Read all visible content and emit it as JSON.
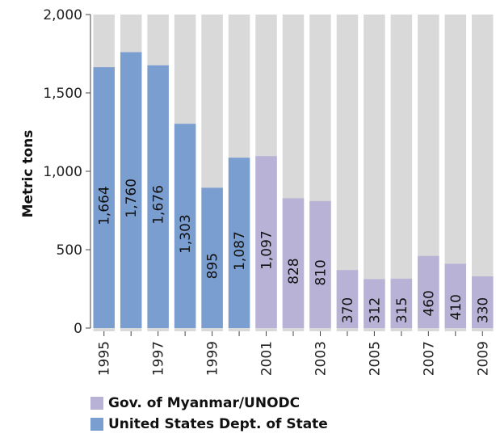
{
  "chart_data": {
    "type": "bar",
    "ylabel": "Metric tons",
    "ylim": [
      0,
      2000
    ],
    "yticks": [
      0,
      500,
      1000,
      1500,
      2000
    ],
    "ytick_labels": [
      "0",
      "500",
      "1,000",
      "1,500",
      "2,000"
    ],
    "categories": [
      "1995",
      "1996",
      "1997",
      "1998",
      "1999",
      "2000",
      "2001",
      "2002",
      "2003",
      "2004",
      "2005",
      "2006",
      "2007",
      "2008",
      "2009"
    ],
    "xtick_labels": [
      "1995",
      "",
      "1997",
      "",
      "1999",
      "",
      "2001",
      "",
      "2003",
      "",
      "2005",
      "",
      "2007",
      "",
      "2009"
    ],
    "values": [
      1664,
      1760,
      1676,
      1303,
      895,
      1087,
      1097,
      828,
      810,
      370,
      312,
      315,
      460,
      410,
      330
    ],
    "data_labels": [
      "1,664",
      "1,760",
      "1,676",
      "1,303",
      "895",
      "1,087",
      "1,097",
      "828",
      "810",
      "370",
      "312",
      "315",
      "460",
      "410",
      "330"
    ],
    "bar_source": [
      "us",
      "us",
      "us",
      "us",
      "us",
      "us",
      "gov",
      "gov",
      "gov",
      "gov",
      "gov",
      "gov",
      "gov",
      "gov",
      "gov"
    ],
    "colors": {
      "us": "#7b9ed0",
      "gov": "#b8b2d6",
      "band": "#d9d9d9"
    },
    "legend": [
      {
        "key": "gov",
        "label": "Gov. of Myanmar/UNODC"
      },
      {
        "key": "us",
        "label": "United States Dept. of State"
      }
    ],
    "grid": false
  }
}
